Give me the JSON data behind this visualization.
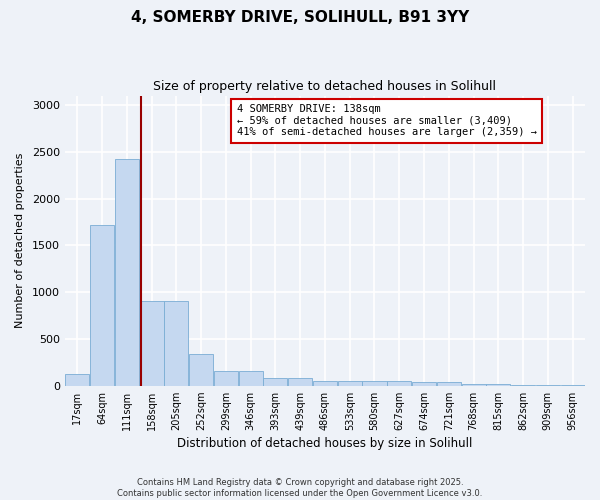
{
  "title": "4, SOMERBY DRIVE, SOLIHULL, B91 3YY",
  "subtitle": "Size of property relative to detached houses in Solihull",
  "xlabel": "Distribution of detached houses by size in Solihull",
  "ylabel": "Number of detached properties",
  "bar_color": "#c5d8f0",
  "bar_edge_color": "#7aadd4",
  "bin_labels": [
    "17sqm",
    "64sqm",
    "111sqm",
    "158sqm",
    "205sqm",
    "252sqm",
    "299sqm",
    "346sqm",
    "393sqm",
    "439sqm",
    "486sqm",
    "533sqm",
    "580sqm",
    "627sqm",
    "674sqm",
    "721sqm",
    "768sqm",
    "815sqm",
    "862sqm",
    "909sqm",
    "956sqm"
  ],
  "bar_heights": [
    130,
    1720,
    2420,
    910,
    910,
    340,
    155,
    155,
    80,
    80,
    45,
    45,
    50,
    50,
    40,
    40,
    15,
    15,
    5,
    5,
    5
  ],
  "ylim": [
    0,
    3100
  ],
  "yticks": [
    0,
    500,
    1000,
    1500,
    2000,
    2500,
    3000
  ],
  "annotation_text": "4 SOMERBY DRIVE: 138sqm\n← 59% of detached houses are smaller (3,409)\n41% of semi-detached houses are larger (2,359) →",
  "annotation_box_color": "#ffffff",
  "annotation_border_color": "#cc0000",
  "footer_line1": "Contains HM Land Registry data © Crown copyright and database right 2025.",
  "footer_line2": "Contains public sector information licensed under the Open Government Licence v3.0.",
  "background_color": "#eef2f8",
  "grid_color": "#ffffff"
}
